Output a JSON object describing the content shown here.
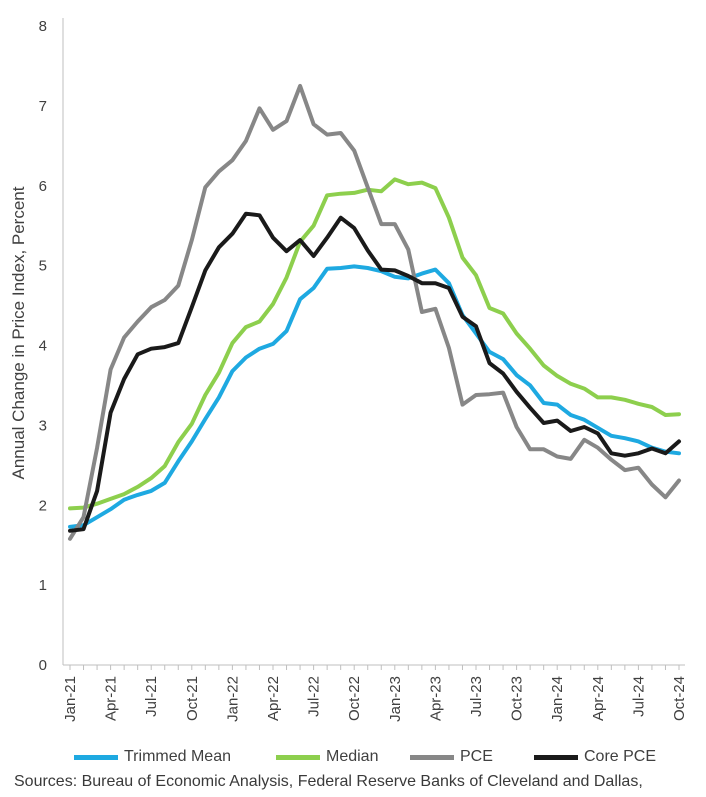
{
  "chart_data": {
    "type": "line",
    "ylabel": "Annual Change in Price Index, Percent",
    "ylim": [
      0,
      8
    ],
    "yticks": [
      "0",
      "1",
      "2",
      "3",
      "4",
      "5",
      "6",
      "7",
      "8"
    ],
    "x": [
      "Jan-21",
      "Feb-21",
      "Mar-21",
      "Apr-21",
      "May-21",
      "Jun-21",
      "Jul-21",
      "Aug-21",
      "Sep-21",
      "Oct-21",
      "Nov-21",
      "Dec-21",
      "Jan-22",
      "Feb-22",
      "Mar-22",
      "Apr-22",
      "May-22",
      "Jun-22",
      "Jul-22",
      "Aug-22",
      "Sep-22",
      "Oct-22",
      "Nov-22",
      "Dec-22",
      "Jan-23",
      "Feb-23",
      "Mar-23",
      "Apr-23",
      "May-23",
      "Jun-23",
      "Jul-23",
      "Aug-23",
      "Sep-23",
      "Oct-23",
      "Nov-23",
      "Dec-23",
      "Jan-24",
      "Feb-24",
      "Mar-24",
      "Apr-24",
      "May-24",
      "Jun-24",
      "Jul-24",
      "Aug-24",
      "Sep-24",
      "Oct-24"
    ],
    "xticks": [
      "Jan-21",
      "Apr-21",
      "Jul-21",
      "Oct-21",
      "Jan-22",
      "Apr-22",
      "Jul-22",
      "Oct-22",
      "Jan-23",
      "Apr-23",
      "Jul-23",
      "Oct-23",
      "Jan-24",
      "Apr-24",
      "Jul-24",
      "Oct-24"
    ],
    "series": [
      {
        "name": "Trimmed Mean",
        "color": "#1ea9e1",
        "values": [
          1.73,
          1.75,
          1.85,
          1.95,
          2.07,
          2.13,
          2.18,
          2.28,
          2.55,
          2.8,
          3.08,
          3.35,
          3.68,
          3.85,
          3.96,
          4.02,
          4.18,
          4.58,
          4.72,
          4.96,
          4.97,
          4.99,
          4.97,
          4.93,
          4.86,
          4.84,
          4.9,
          4.95,
          4.78,
          4.38,
          4.15,
          3.92,
          3.83,
          3.63,
          3.5,
          3.28,
          3.26,
          3.13,
          3.07,
          2.97,
          2.87,
          2.84,
          2.8,
          2.72,
          2.67,
          2.65
        ]
      },
      {
        "name": "Median",
        "color": "#8dcf4d",
        "values": [
          1.96,
          1.97,
          2.02,
          2.08,
          2.14,
          2.23,
          2.34,
          2.49,
          2.79,
          3.02,
          3.38,
          3.66,
          4.03,
          4.23,
          4.3,
          4.52,
          4.85,
          5.3,
          5.5,
          5.88,
          5.9,
          5.91,
          5.95,
          5.93,
          6.08,
          6.02,
          6.04,
          5.97,
          5.6,
          5.1,
          4.88,
          4.47,
          4.4,
          4.15,
          3.96,
          3.75,
          3.62,
          3.52,
          3.46,
          3.35,
          3.35,
          3.32,
          3.27,
          3.23,
          3.13,
          3.14
        ]
      },
      {
        "name": "PCE",
        "color": "#878787",
        "values": [
          1.58,
          1.85,
          2.72,
          3.7,
          4.1,
          4.3,
          4.48,
          4.57,
          4.75,
          5.32,
          5.98,
          6.18,
          6.32,
          6.56,
          6.97,
          6.7,
          6.81,
          7.25,
          6.77,
          6.64,
          6.66,
          6.44,
          5.98,
          5.52,
          5.52,
          5.2,
          4.42,
          4.46,
          3.97,
          3.26,
          3.38,
          3.39,
          3.41,
          2.98,
          2.7,
          2.7,
          2.61,
          2.58,
          2.82,
          2.72,
          2.57,
          2.44,
          2.47,
          2.26,
          2.1,
          2.31
        ]
      },
      {
        "name": "Core PCE",
        "color": "#1a1a1a",
        "values": [
          1.68,
          1.7,
          2.18,
          3.16,
          3.58,
          3.89,
          3.96,
          3.98,
          4.03,
          4.48,
          4.94,
          5.23,
          5.4,
          5.65,
          5.63,
          5.35,
          5.18,
          5.32,
          5.12,
          5.35,
          5.6,
          5.47,
          5.19,
          4.95,
          4.94,
          4.87,
          4.78,
          4.78,
          4.72,
          4.36,
          4.24,
          3.78,
          3.65,
          3.42,
          3.22,
          3.03,
          3.06,
          2.93,
          2.98,
          2.9,
          2.65,
          2.62,
          2.65,
          2.71,
          2.65,
          2.8
        ]
      }
    ]
  },
  "source_text": "Sources: Bureau of Economic Analysis, Federal Reserve Banks of Cleveland and Dallas,"
}
